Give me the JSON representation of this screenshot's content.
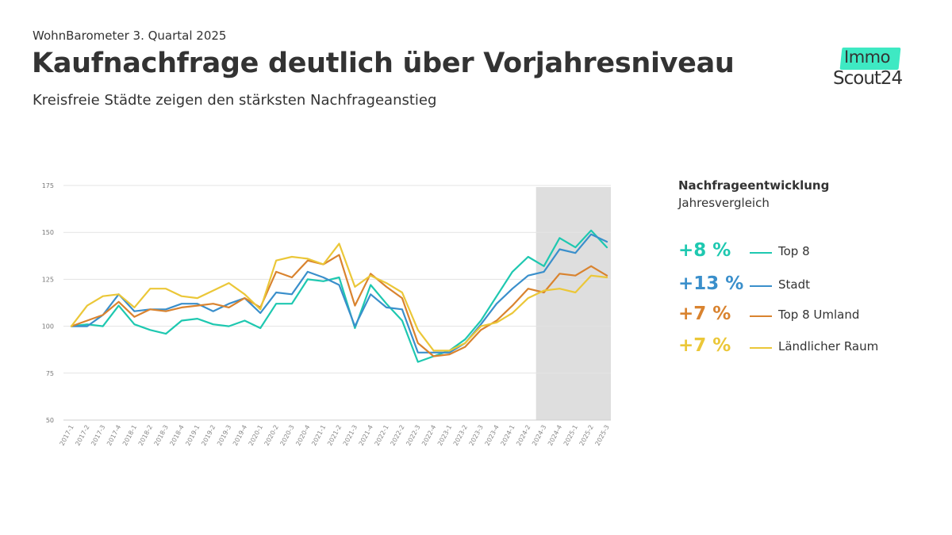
{
  "header": {
    "kicker": "WohnBarometer 3. Quartal 2025",
    "title": "Kaufnachfrage deutlich über Vorjahresniveau",
    "subtitle": "Kreisfreie Städte zeigen den stärksten Nachfrageanstieg"
  },
  "logo": {
    "line1": "Immo",
    "line2": "Scout24"
  },
  "legend": {
    "title": "Nachfrageentwicklung",
    "subtitle": "Jahresvergleich",
    "items": [
      {
        "value": "+8 %",
        "name": "Top 8",
        "color": "#1ec8b0"
      },
      {
        "value": "+13 %",
        "name": "Stadt",
        "color": "#3a8fcb"
      },
      {
        "value": "+7 %",
        "name": "Top 8 Umland",
        "color": "#d9832f"
      },
      {
        "value": "+7 %",
        "name": "Ländlicher Raum",
        "color": "#ebc738"
      }
    ]
  },
  "chart_data": {
    "type": "line",
    "ylim": [
      50,
      175
    ],
    "yticks": [
      50,
      75,
      100,
      125,
      150,
      175
    ],
    "grid": true,
    "highlight_from": "2024-3",
    "categories": [
      "2017-1",
      "2017-2",
      "2017-3",
      "2017-4",
      "2018-1",
      "2018-2",
      "2018-3",
      "2018-4",
      "2019-1",
      "2019-2",
      "2019-3",
      "2019-4",
      "2020-1",
      "2020-2",
      "2020-3",
      "2020-4",
      "2021-1",
      "2021-2",
      "2021-3",
      "2021-4",
      "2022-1",
      "2022-2",
      "2022-3",
      "2022-4",
      "2023-1",
      "2023-2",
      "2023-3",
      "2023-4",
      "2024-1",
      "2024-2",
      "2024-3",
      "2024-4",
      "2025-1",
      "2025-2",
      "2025-3"
    ],
    "series": [
      {
        "name": "Top 8",
        "color": "#1ec8b0",
        "values": [
          100,
          101,
          100,
          111,
          101,
          98,
          96,
          103,
          104,
          101,
          100,
          103,
          99,
          112,
          112,
          125,
          124,
          126,
          99,
          122,
          112,
          103,
          81,
          84,
          87,
          93,
          103,
          116,
          129,
          137,
          132,
          147,
          142,
          151,
          142
        ]
      },
      {
        "name": "Stadt",
        "color": "#3a8fcb",
        "values": [
          100,
          100,
          106,
          117,
          108,
          109,
          109,
          112,
          112,
          108,
          112,
          115,
          107,
          118,
          117,
          129,
          126,
          122,
          100,
          117,
          110,
          109,
          86,
          86,
          86,
          91,
          101,
          112,
          120,
          127,
          129,
          141,
          139,
          149,
          145
        ]
      },
      {
        "name": "Top 8 Umland",
        "color": "#d9832f",
        "values": [
          100,
          103,
          106,
          113,
          105,
          109,
          108,
          110,
          111,
          112,
          110,
          115,
          110,
          129,
          126,
          135,
          133,
          138,
          111,
          128,
          121,
          115,
          91,
          84,
          85,
          89,
          98,
          103,
          111,
          120,
          118,
          128,
          127,
          132,
          127
        ]
      },
      {
        "name": "Ländlicher Raum",
        "color": "#ebc738",
        "values": [
          100,
          111,
          116,
          117,
          110,
          120,
          120,
          116,
          115,
          119,
          123,
          117,
          109,
          135,
          137,
          136,
          133,
          144,
          121,
          127,
          123,
          118,
          98,
          87,
          87,
          91,
          100,
          102,
          107,
          115,
          119,
          120,
          118,
          127,
          126
        ]
      }
    ]
  }
}
